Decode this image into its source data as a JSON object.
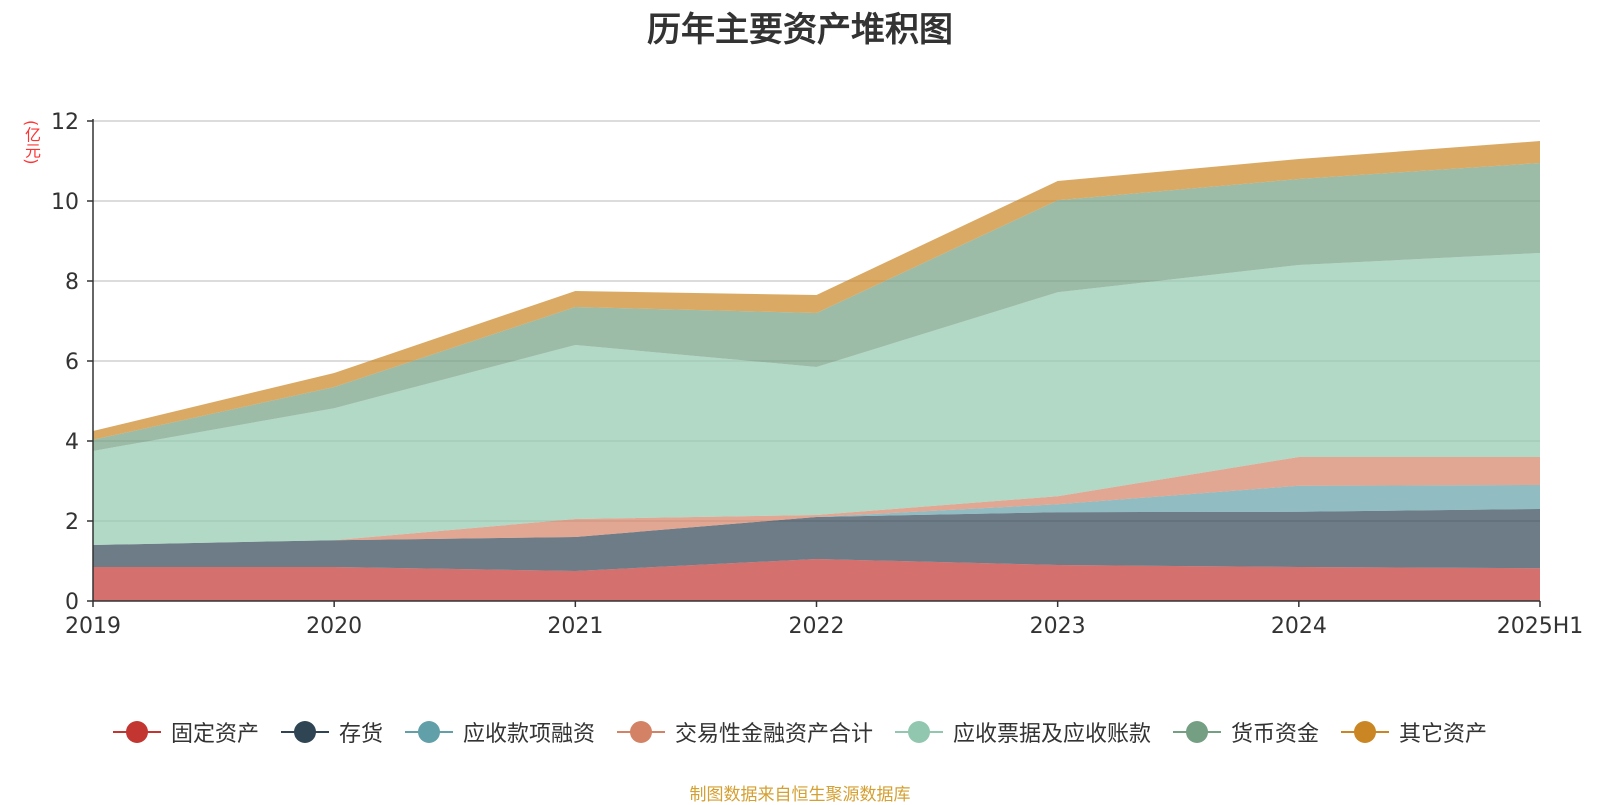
{
  "chart_data": {
    "type": "area",
    "stacked": true,
    "title": "历年主要资产堆积图",
    "unit": "(亿元)",
    "categories": [
      "2019",
      "2020",
      "2021",
      "2022",
      "2023",
      "2024",
      "2025H1"
    ],
    "ylim": [
      0,
      12
    ],
    "yticks": [
      0,
      2,
      4,
      6,
      8,
      10,
      12
    ],
    "grid": true,
    "legend_position": "bottom",
    "series": [
      {
        "name": "固定资产",
        "color": "#c23531",
        "values": [
          0.85,
          0.85,
          0.75,
          1.05,
          0.9,
          0.85,
          0.82
        ]
      },
      {
        "name": "存货",
        "color": "#2f4554",
        "values": [
          0.55,
          0.67,
          0.85,
          1.05,
          1.32,
          1.38,
          1.48
        ]
      },
      {
        "name": "应收款项融资",
        "color": "#61a0a8",
        "values": [
          0.0,
          0.0,
          0.0,
          0.0,
          0.2,
          0.65,
          0.6
        ]
      },
      {
        "name": "交易性金融资产合计",
        "color": "#d48265",
        "values": [
          0.0,
          0.0,
          0.45,
          0.05,
          0.2,
          0.72,
          0.7
        ]
      },
      {
        "name": "应收票据及应收账款",
        "color": "#91c7ae",
        "values": [
          2.35,
          3.3,
          4.35,
          3.7,
          5.1,
          4.8,
          5.1
        ]
      },
      {
        "name": "货币资金",
        "color": "#749f83",
        "values": [
          0.28,
          0.53,
          0.95,
          1.35,
          2.3,
          2.15,
          2.25
        ]
      },
      {
        "name": "其它资产",
        "color": "#ca8622",
        "values": [
          0.22,
          0.35,
          0.4,
          0.45,
          0.48,
          0.5,
          0.55
        ]
      }
    ]
  },
  "source_note": "制图数据来自恒生聚源数据库"
}
